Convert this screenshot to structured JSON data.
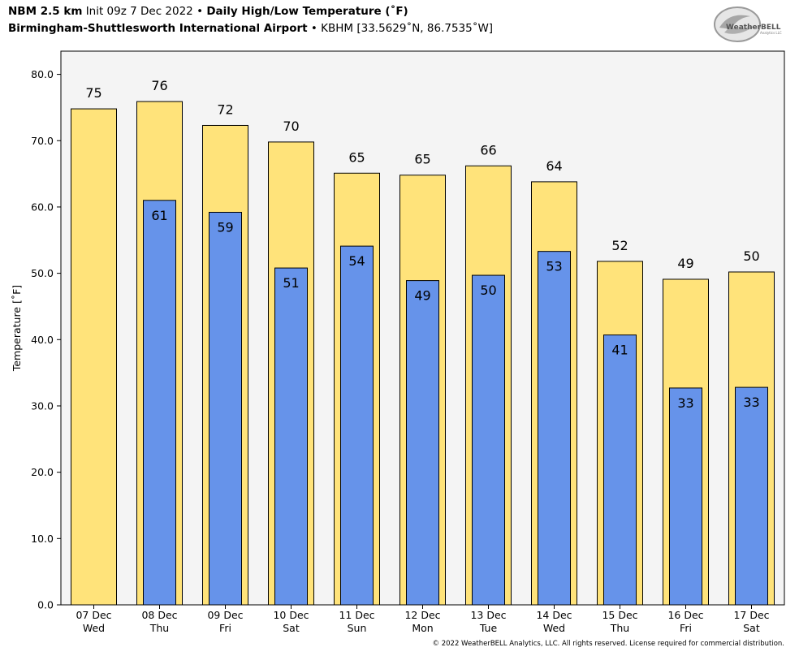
{
  "header": {
    "model": "NBM 2.5 km",
    "init": "Init 09z 7 Dec 2022",
    "sep": "•",
    "title": "Daily High/Low Temperature (˚F)",
    "station_name": "Birmingham-Shuttlesworth International Airport",
    "station_info": "KBHM [33.5629˚N, 86.7535˚W]"
  },
  "logo": {
    "text_main": "WeatherBELL",
    "text_sub": "Analytics LLC"
  },
  "copyright": "© 2022 WeatherBELL Analytics, LLC. All rights reserved. License required for commercial distribution.",
  "colors": {
    "high": "#ffe37a",
    "low": "#6693ea",
    "plot_bg": "#f4f4f4"
  },
  "chart_data": {
    "type": "bar",
    "ylabel": "Temperature [˚F]",
    "ylim": [
      0,
      83.5
    ],
    "yticks": [
      "0.0",
      "10.0",
      "20.0",
      "30.0",
      "40.0",
      "50.0",
      "60.0",
      "70.0",
      "80.0"
    ],
    "categories": [
      {
        "date": "07 Dec",
        "day": "Wed"
      },
      {
        "date": "08 Dec",
        "day": "Thu"
      },
      {
        "date": "09 Dec",
        "day": "Fri"
      },
      {
        "date": "10 Dec",
        "day": "Sat"
      },
      {
        "date": "11 Dec",
        "day": "Sun"
      },
      {
        "date": "12 Dec",
        "day": "Mon"
      },
      {
        "date": "13 Dec",
        "day": "Tue"
      },
      {
        "date": "14 Dec",
        "day": "Wed"
      },
      {
        "date": "15 Dec",
        "day": "Thu"
      },
      {
        "date": "16 Dec",
        "day": "Fri"
      },
      {
        "date": "17 Dec",
        "day": "Sat"
      }
    ],
    "highs": [
      74.8,
      75.9,
      72.3,
      69.8,
      65.1,
      64.8,
      66.2,
      63.8,
      51.8,
      49.1,
      50.2
    ],
    "high_labels": [
      "75",
      "76",
      "72",
      "70",
      "65",
      "65",
      "66",
      "64",
      "52",
      "49",
      "50"
    ],
    "lows": [
      null,
      61.0,
      59.2,
      50.8,
      54.1,
      48.9,
      49.7,
      53.3,
      40.7,
      32.7,
      32.8
    ],
    "low_labels": [
      "",
      "61",
      "59",
      "51",
      "54",
      "49",
      "50",
      "53",
      "41",
      "33",
      "33"
    ]
  }
}
